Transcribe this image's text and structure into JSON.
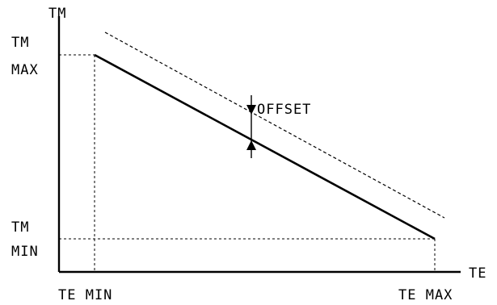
{
  "labels": {
    "y_axis": "TM",
    "x_axis": "TE",
    "tm_max_line1": "TM",
    "tm_max_line2": "MAX",
    "tm_min_line1": "TM",
    "tm_min_line2": "MIN",
    "te_min": "TE MIN",
    "te_max": "TE MAX",
    "offset": "OFFSET"
  }
}
